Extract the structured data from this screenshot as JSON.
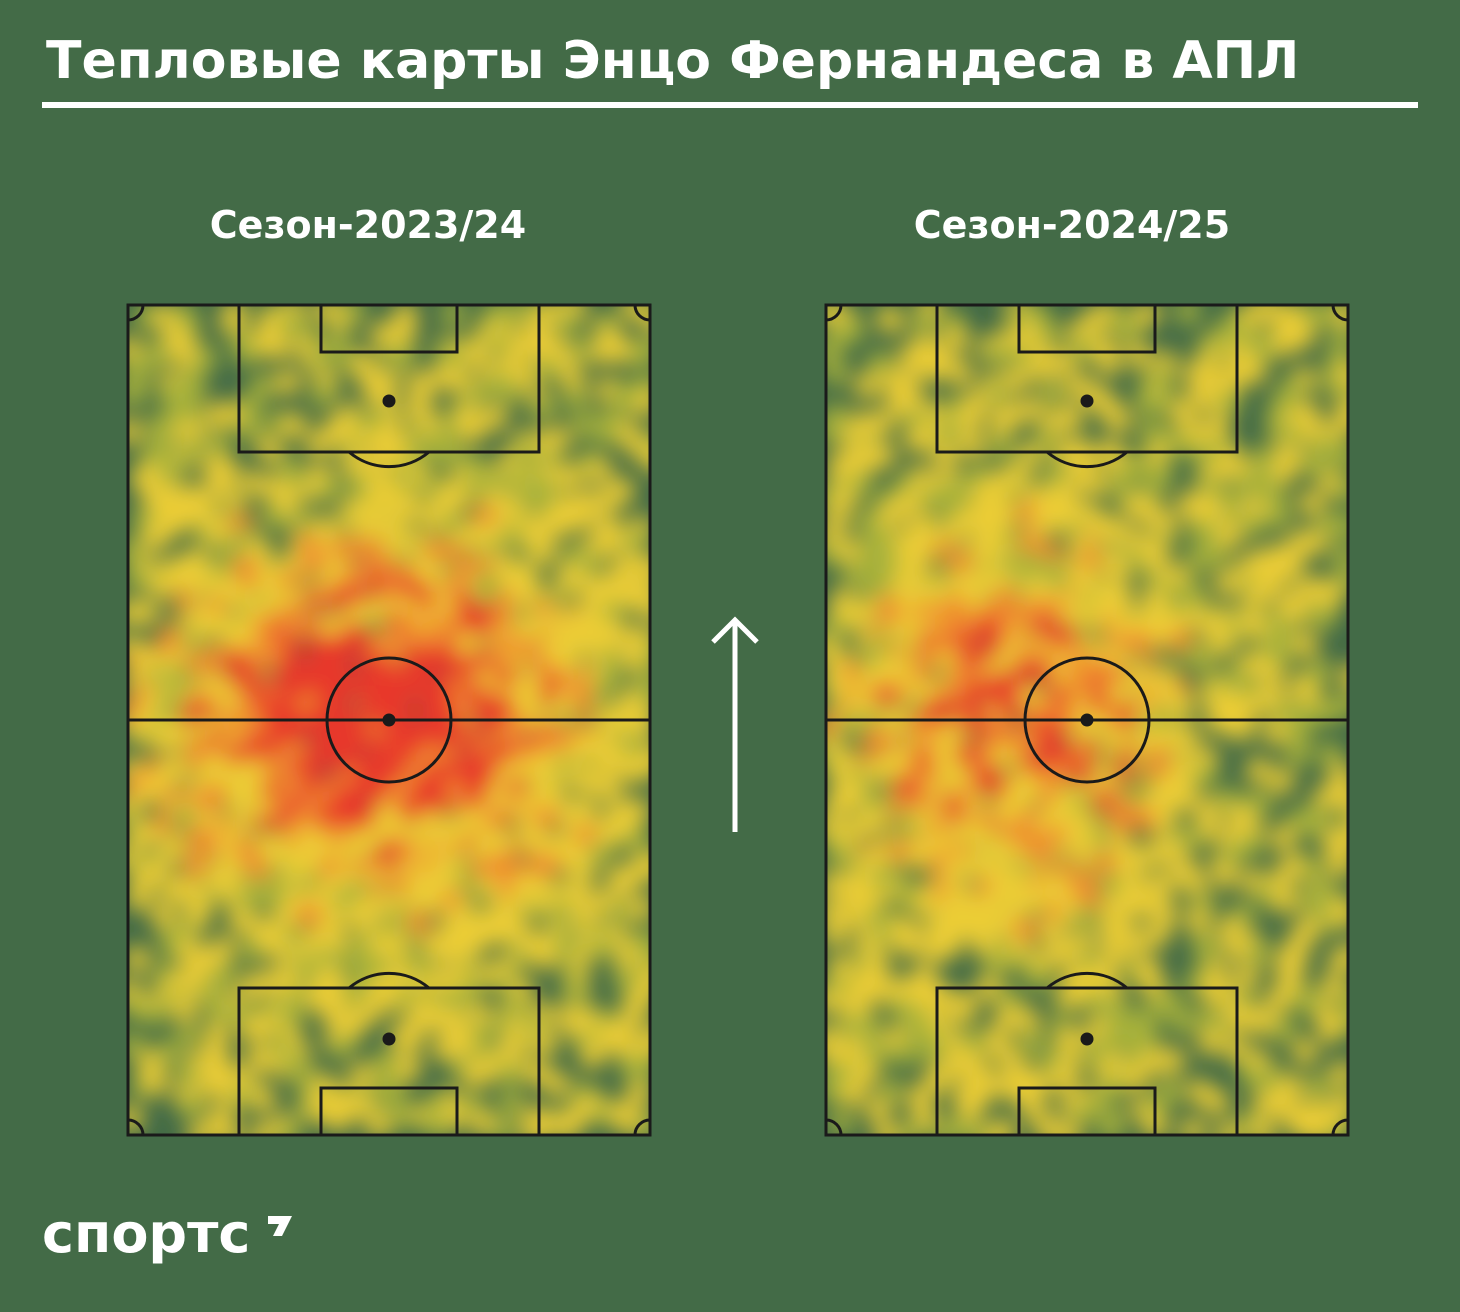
{
  "title": "Тепловые карты Энцо Фернандеса в АПЛ",
  "maps": [
    {
      "label": "Сезон-2023/24"
    },
    {
      "label": "Сезон-2024/25"
    }
  ],
  "logo": "спортс"
}
